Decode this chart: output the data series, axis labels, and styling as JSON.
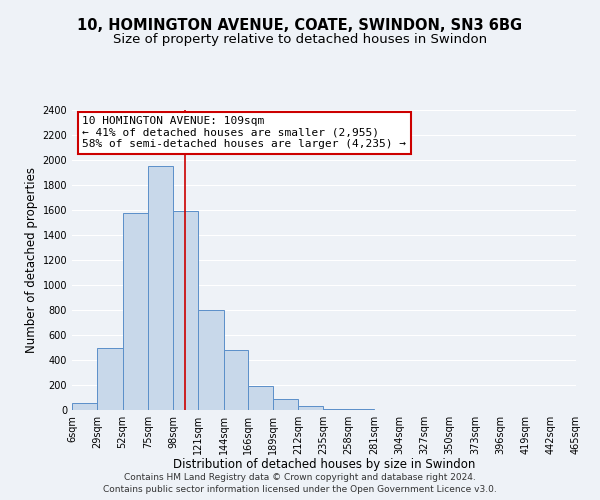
{
  "title": "10, HOMINGTON AVENUE, COATE, SWINDON, SN3 6BG",
  "subtitle": "Size of property relative to detached houses in Swindon",
  "xlabel": "Distribution of detached houses by size in Swindon",
  "ylabel": "Number of detached properties",
  "bin_edges": [
    6,
    29,
    52,
    75,
    98,
    121,
    144,
    166,
    189,
    212,
    235,
    258,
    281,
    304,
    327,
    350,
    373,
    396,
    419,
    442,
    465
  ],
  "bin_labels": [
    "6sqm",
    "29sqm",
    "52sqm",
    "75sqm",
    "98sqm",
    "121sqm",
    "144sqm",
    "166sqm",
    "189sqm",
    "212sqm",
    "235sqm",
    "258sqm",
    "281sqm",
    "304sqm",
    "327sqm",
    "350sqm",
    "373sqm",
    "396sqm",
    "419sqm",
    "442sqm",
    "465sqm"
  ],
  "counts": [
    55,
    500,
    1580,
    1950,
    1590,
    800,
    480,
    190,
    90,
    35,
    10,
    5,
    0,
    0,
    0,
    0,
    0,
    0,
    0,
    0
  ],
  "bar_facecolor": "#c8d8ea",
  "bar_edgecolor": "#5b8fc9",
  "property_value": 109,
  "vline_color": "#cc0000",
  "annotation_text": "10 HOMINGTON AVENUE: 109sqm\n← 41% of detached houses are smaller (2,955)\n58% of semi-detached houses are larger (4,235) →",
  "annotation_box_edgecolor": "#cc0000",
  "annotation_box_facecolor": "#ffffff",
  "ylim": [
    0,
    2400
  ],
  "yticks": [
    0,
    200,
    400,
    600,
    800,
    1000,
    1200,
    1400,
    1600,
    1800,
    2000,
    2200,
    2400
  ],
  "footer_line1": "Contains HM Land Registry data © Crown copyright and database right 2024.",
  "footer_line2": "Contains public sector information licensed under the Open Government Licence v3.0.",
  "background_color": "#eef2f7",
  "grid_color": "#ffffff",
  "title_fontsize": 10.5,
  "subtitle_fontsize": 9.5,
  "axis_label_fontsize": 8.5,
  "tick_fontsize": 7,
  "footer_fontsize": 6.5,
  "annotation_fontsize": 8
}
